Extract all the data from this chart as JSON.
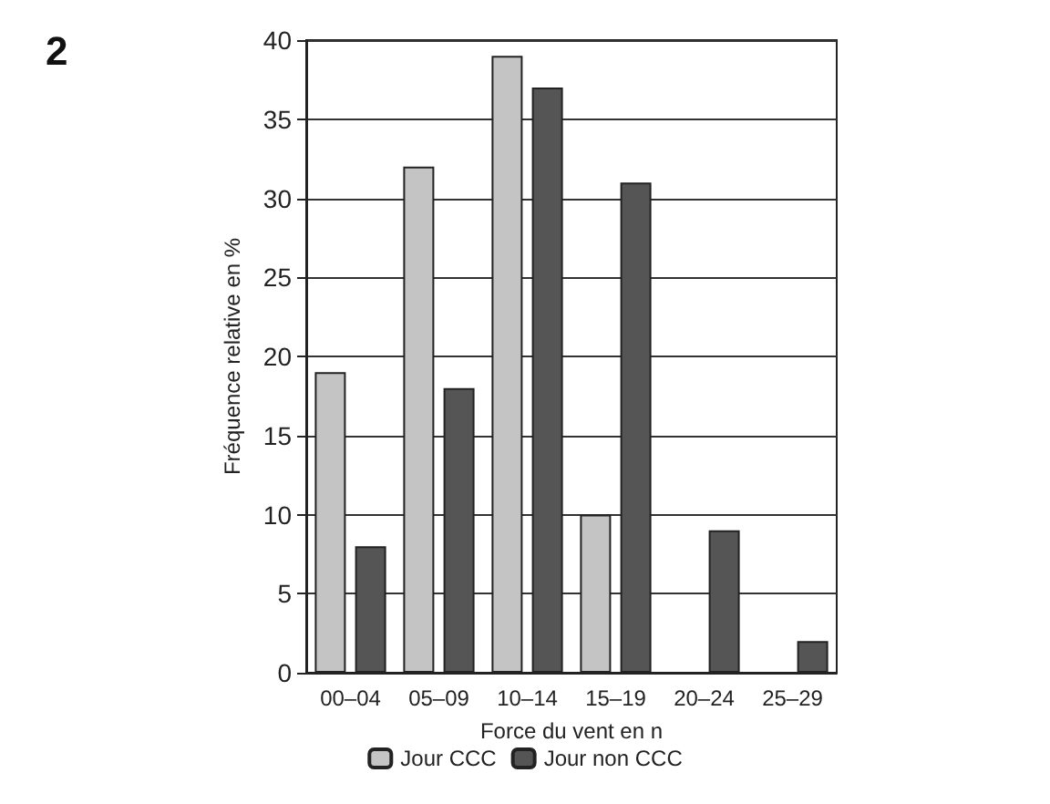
{
  "chart_data": {
    "type": "bar",
    "title": "2",
    "xlabel": "Force du vent en n",
    "ylabel": "Fréquence relative en %",
    "categories": [
      "00–04",
      "05–09",
      "10–14",
      "15–19",
      "20–24",
      "25–29"
    ],
    "series": [
      {
        "name": "Jour CCC",
        "color": "#c4c4c4",
        "values": [
          19,
          32,
          39,
          10,
          null,
          null
        ]
      },
      {
        "name": "Jour non CCC",
        "color": "#555555",
        "values": [
          8,
          18,
          37,
          31,
          9,
          2
        ]
      }
    ],
    "ylim": [
      0,
      40
    ],
    "yticks": [
      0,
      5,
      10,
      15,
      20,
      25,
      30,
      35,
      40
    ],
    "grid": "y",
    "legend": "bottom"
  }
}
